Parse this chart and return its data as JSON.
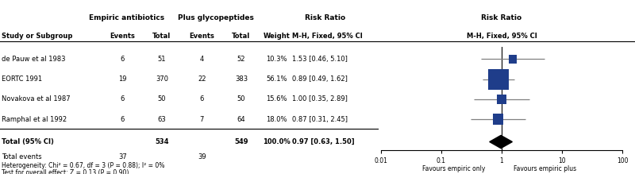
{
  "studies": [
    {
      "name": "de Pauw et al 1983",
      "e1": 6,
      "n1": 51,
      "e2": 4,
      "n2": 52,
      "weight": "10.3%",
      "weight_pct": 10.3,
      "rr": 1.53,
      "ci_low": 0.46,
      "ci_high": 5.1,
      "rr_str": "1.53 [0.46, 5.10]"
    },
    {
      "name": "EORTC 1991",
      "e1": 19,
      "n1": 370,
      "e2": 22,
      "n2": 383,
      "weight": "56.1%",
      "weight_pct": 56.1,
      "rr": 0.89,
      "ci_low": 0.49,
      "ci_high": 1.62,
      "rr_str": "0.89 [0.49, 1.62]"
    },
    {
      "name": "Novakova et al 1987",
      "e1": 6,
      "n1": 50,
      "e2": 6,
      "n2": 50,
      "weight": "15.6%",
      "weight_pct": 15.6,
      "rr": 1.0,
      "ci_low": 0.35,
      "ci_high": 2.89,
      "rr_str": "1.00 [0.35, 2.89]"
    },
    {
      "name": "Ramphal et al 1992",
      "e1": 6,
      "n1": 63,
      "e2": 7,
      "n2": 64,
      "weight": "18.0%",
      "weight_pct": 18.0,
      "rr": 0.87,
      "ci_low": 0.31,
      "ci_high": 2.45,
      "rr_str": "0.87 [0.31, 2.45]"
    }
  ],
  "total": {
    "n1": 534,
    "n2": 549,
    "weight": "100.0%",
    "rr": 0.97,
    "ci_low": 0.63,
    "ci_high": 1.5,
    "rr_str": "0.97 [0.63, 1.50]",
    "e1": 37,
    "e2": 39
  },
  "heterogeneity": "Heterogeneity: Chi² = 0.67, df = 3 (P = 0.88); I² = 0%",
  "overall_test": "Test for overall effect: Z = 0.13 (P = 0.90)",
  "col_header1": "Empiric antibiotics",
  "col_header2": "Plus glycopeptides",
  "col_header3": "Risk Ratio",
  "col_header4": "Risk Ratio",
  "col_sub3": "M-H, Fixed, 95% CI",
  "col_sub4": "M-H, Fixed, 95% CI",
  "col_events": "Events",
  "col_total": "Total",
  "col_weight": "Weight",
  "study_label": "Study or Subgroup",
  "square_color": "#1f3d8a",
  "diamond_color": "#000000",
  "line_color_study": "#808080",
  "xmin": 0.01,
  "xmax": 100,
  "xticks": [
    0.01,
    0.1,
    1,
    10,
    100
  ],
  "xtick_labels": [
    "0.01",
    "0.1",
    "1",
    "10",
    "100"
  ],
  "favour_left": "Favours empiric only",
  "favour_right": "Favours empiric plus"
}
